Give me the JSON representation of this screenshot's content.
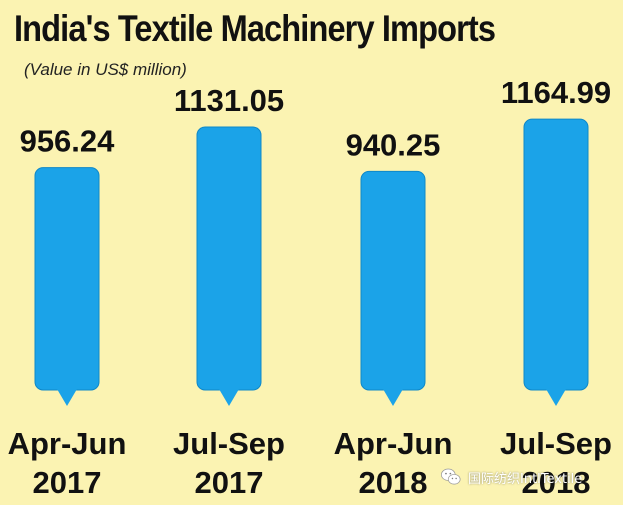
{
  "chart_data": {
    "type": "bar",
    "title": "India's Textile Machinery Imports",
    "subtitle": "(Value in US$ million)",
    "categories": [
      [
        "Apr-Jun",
        "2017"
      ],
      [
        "Jul-Sep",
        "2017"
      ],
      [
        "Apr-Jun",
        "2018"
      ],
      [
        "Jul-Sep",
        "2018"
      ]
    ],
    "values": [
      956.24,
      1131.05,
      940.25,
      1164.99
    ],
    "value_labels": [
      "956.24",
      "1131.05",
      "940.25",
      "1164.99"
    ],
    "xlabel": "",
    "ylabel": "",
    "grid": false,
    "legend": "none"
  },
  "watermark": {
    "text": "国际纺织IntlTextile",
    "icon": "wechat-icon"
  },
  "colors": {
    "background": "#fbf3b2",
    "bar": "#1ba3e8",
    "bar_stroke": "#0f88c8",
    "text": "#111111"
  }
}
